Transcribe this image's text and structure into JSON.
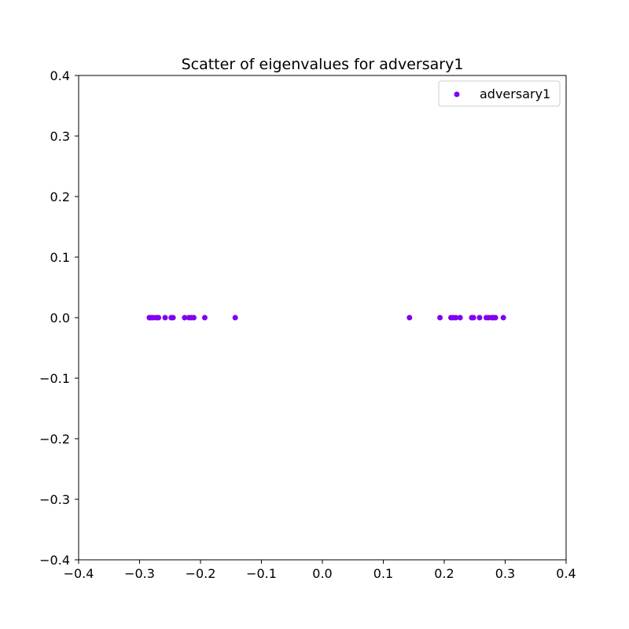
{
  "chart_data": {
    "type": "scatter",
    "title": "Scatter of eigenvalues for adversary1",
    "xlabel": "",
    "ylabel": "",
    "xlim": [
      -0.4,
      0.4
    ],
    "ylim": [
      -0.4,
      0.4
    ],
    "x_ticks": [
      "−0.4",
      "−0.3",
      "−0.2",
      "−0.1",
      "0.0",
      "0.1",
      "0.2",
      "0.3",
      "0.4"
    ],
    "y_ticks": [
      "−0.4",
      "−0.3",
      "−0.2",
      "−0.1",
      "0.0",
      "0.1",
      "0.2",
      "0.3",
      "0.4"
    ],
    "grid": false,
    "legend_position": "top-right",
    "series": [
      {
        "name": "adversary1",
        "color": "#8000f0",
        "marker": "circle",
        "points": [
          {
            "x": -0.284,
            "y": 0.0
          },
          {
            "x": -0.281,
            "y": 0.0
          },
          {
            "x": -0.278,
            "y": 0.0
          },
          {
            "x": -0.273,
            "y": 0.0
          },
          {
            "x": -0.269,
            "y": 0.0
          },
          {
            "x": -0.258,
            "y": 0.0
          },
          {
            "x": -0.248,
            "y": 0.0
          },
          {
            "x": -0.245,
            "y": 0.0
          },
          {
            "x": -0.226,
            "y": 0.0
          },
          {
            "x": -0.219,
            "y": 0.0
          },
          {
            "x": -0.215,
            "y": 0.0
          },
          {
            "x": -0.211,
            "y": 0.0
          },
          {
            "x": -0.193,
            "y": 0.0
          },
          {
            "x": -0.143,
            "y": 0.0
          },
          {
            "x": 0.143,
            "y": 0.0
          },
          {
            "x": 0.193,
            "y": 0.0
          },
          {
            "x": 0.211,
            "y": 0.0
          },
          {
            "x": 0.215,
            "y": 0.0
          },
          {
            "x": 0.219,
            "y": 0.0
          },
          {
            "x": 0.226,
            "y": 0.0
          },
          {
            "x": 0.245,
            "y": 0.0
          },
          {
            "x": 0.248,
            "y": 0.0
          },
          {
            "x": 0.258,
            "y": 0.0
          },
          {
            "x": 0.269,
            "y": 0.0
          },
          {
            "x": 0.273,
            "y": 0.0
          },
          {
            "x": 0.278,
            "y": 0.0
          },
          {
            "x": 0.281,
            "y": 0.0
          },
          {
            "x": 0.284,
            "y": 0.0
          },
          {
            "x": 0.297,
            "y": 0.0
          }
        ]
      }
    ]
  }
}
